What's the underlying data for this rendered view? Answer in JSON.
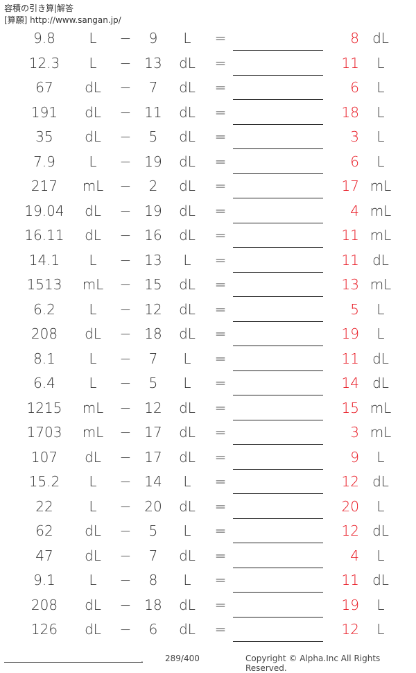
{
  "header": {
    "title": "容積の引き算|解答",
    "site": "[算願] http://www.sangan.jp/"
  },
  "colors": {
    "answer": "#e8141e"
  },
  "problems": [
    {
      "a": "9.8",
      "ua": "L",
      "op": "−",
      "b": "9",
      "ub": "L",
      "eq": "=",
      "ans": "8",
      "uans": "dL"
    },
    {
      "a": "12.3",
      "ua": "L",
      "op": "−",
      "b": "13",
      "ub": "dL",
      "eq": "=",
      "ans": "11",
      "uans": "L"
    },
    {
      "a": "67",
      "ua": "dL",
      "op": "−",
      "b": "7",
      "ub": "dL",
      "eq": "=",
      "ans": "6",
      "uans": "L"
    },
    {
      "a": "191",
      "ua": "dL",
      "op": "−",
      "b": "11",
      "ub": "dL",
      "eq": "=",
      "ans": "18",
      "uans": "L"
    },
    {
      "a": "35",
      "ua": "dL",
      "op": "−",
      "b": "5",
      "ub": "dL",
      "eq": "=",
      "ans": "3",
      "uans": "L"
    },
    {
      "a": "7.9",
      "ua": "L",
      "op": "−",
      "b": "19",
      "ub": "dL",
      "eq": "=",
      "ans": "6",
      "uans": "L"
    },
    {
      "a": "217",
      "ua": "mL",
      "op": "−",
      "b": "2",
      "ub": "dL",
      "eq": "=",
      "ans": "17",
      "uans": "mL"
    },
    {
      "a": "19.04",
      "ua": "dL",
      "op": "−",
      "b": "19",
      "ub": "dL",
      "eq": "=",
      "ans": "4",
      "uans": "mL"
    },
    {
      "a": "16.11",
      "ua": "dL",
      "op": "−",
      "b": "16",
      "ub": "dL",
      "eq": "=",
      "ans": "11",
      "uans": "mL"
    },
    {
      "a": "14.1",
      "ua": "L",
      "op": "−",
      "b": "13",
      "ub": "L",
      "eq": "=",
      "ans": "11",
      "uans": "dL"
    },
    {
      "a": "1513",
      "ua": "mL",
      "op": "−",
      "b": "15",
      "ub": "dL",
      "eq": "=",
      "ans": "13",
      "uans": "mL"
    },
    {
      "a": "6.2",
      "ua": "L",
      "op": "−",
      "b": "12",
      "ub": "dL",
      "eq": "=",
      "ans": "5",
      "uans": "L"
    },
    {
      "a": "208",
      "ua": "dL",
      "op": "−",
      "b": "18",
      "ub": "dL",
      "eq": "=",
      "ans": "19",
      "uans": "L"
    },
    {
      "a": "8.1",
      "ua": "L",
      "op": "−",
      "b": "7",
      "ub": "L",
      "eq": "=",
      "ans": "11",
      "uans": "dL"
    },
    {
      "a": "6.4",
      "ua": "L",
      "op": "−",
      "b": "5",
      "ub": "L",
      "eq": "=",
      "ans": "14",
      "uans": "dL"
    },
    {
      "a": "1215",
      "ua": "mL",
      "op": "−",
      "b": "12",
      "ub": "dL",
      "eq": "=",
      "ans": "15",
      "uans": "mL"
    },
    {
      "a": "1703",
      "ua": "mL",
      "op": "−",
      "b": "17",
      "ub": "dL",
      "eq": "=",
      "ans": "3",
      "uans": "mL"
    },
    {
      "a": "107",
      "ua": "dL",
      "op": "−",
      "b": "17",
      "ub": "dL",
      "eq": "=",
      "ans": "9",
      "uans": "L"
    },
    {
      "a": "15.2",
      "ua": "L",
      "op": "−",
      "b": "14",
      "ub": "L",
      "eq": "=",
      "ans": "12",
      "uans": "dL"
    },
    {
      "a": "22",
      "ua": "L",
      "op": "−",
      "b": "20",
      "ub": "dL",
      "eq": "=",
      "ans": "20",
      "uans": "L"
    },
    {
      "a": "62",
      "ua": "dL",
      "op": "−",
      "b": "5",
      "ub": "L",
      "eq": "=",
      "ans": "12",
      "uans": "dL"
    },
    {
      "a": "47",
      "ua": "dL",
      "op": "−",
      "b": "7",
      "ub": "dL",
      "eq": "=",
      "ans": "4",
      "uans": "L"
    },
    {
      "a": "9.1",
      "ua": "L",
      "op": "−",
      "b": "8",
      "ub": "L",
      "eq": "=",
      "ans": "11",
      "uans": "dL"
    },
    {
      "a": "208",
      "ua": "dL",
      "op": "−",
      "b": "18",
      "ub": "dL",
      "eq": "=",
      "ans": "19",
      "uans": "L"
    },
    {
      "a": "126",
      "ua": "dL",
      "op": "−",
      "b": "6",
      "ub": "dL",
      "eq": "=",
      "ans": "12",
      "uans": "L"
    }
  ],
  "footer": {
    "dot": ".",
    "page": "289/400",
    "copyright": "Copyright © Alpha.Inc All Rights Reserved."
  }
}
